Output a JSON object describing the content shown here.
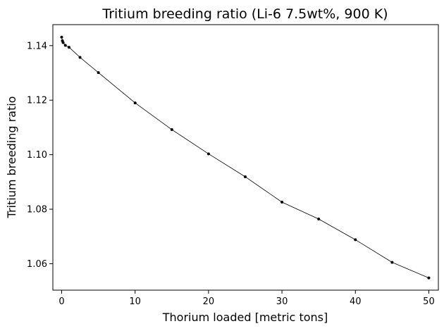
{
  "chart_data": {
    "type": "line",
    "title": "Tritium breeding ratio (Li-6 7.5wt%, 900 K)",
    "xlabel": "Thorium loaded [metric tons]",
    "ylabel": "Tritium breeding ratio",
    "xlim": [
      -1.2,
      51.3
    ],
    "ylim": [
      1.0503,
      1.1477
    ],
    "xticks": [
      0,
      10,
      20,
      30,
      40,
      50
    ],
    "xtick_labels": [
      "0",
      "10",
      "20",
      "30",
      "40",
      "50"
    ],
    "yticks": [
      1.06,
      1.08,
      1.1,
      1.12,
      1.14
    ],
    "ytick_labels": [
      "1.06",
      "1.08",
      "1.10",
      "1.12",
      "1.14"
    ],
    "grid": false,
    "legend": null,
    "series": [
      {
        "color": "#000000",
        "marker": "circle",
        "x": [
          0,
          0.1,
          0.2,
          0.5,
          1,
          2.5,
          5,
          10,
          15,
          20,
          25,
          30,
          35,
          40,
          45,
          50
        ],
        "y": [
          1.1431,
          1.1418,
          1.1411,
          1.1401,
          1.1394,
          1.1357,
          1.1301,
          1.119,
          1.1092,
          1.1003,
          1.0919,
          1.0826,
          1.0764,
          1.0688,
          1.0605,
          1.0548
        ]
      }
    ]
  }
}
